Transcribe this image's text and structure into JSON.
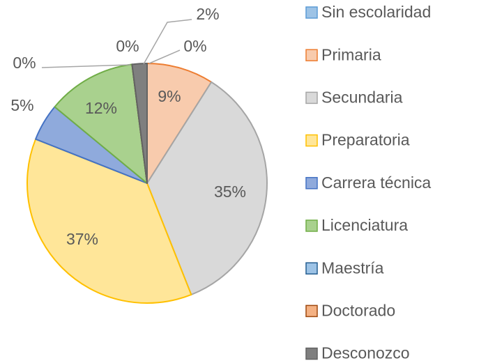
{
  "chart_data": {
    "type": "pie",
    "categories": [
      "Sin escolaridad",
      "Primaria",
      "Secundaria",
      "Preparatoria",
      "Carrera técnica",
      "Licenciatura",
      "Maestría",
      "Doctorado",
      "Desconozco"
    ],
    "values": [
      0,
      9,
      35,
      37,
      5,
      12,
      0,
      0,
      2
    ],
    "value_labels": [
      "0%",
      "9%",
      "35%",
      "37%",
      "5%",
      "12%",
      "0%",
      "0%",
      "2%"
    ],
    "colors": [
      "#9dc3e6",
      "#f8cbad",
      "#d9d9d9",
      "#ffe699",
      "#8faadc",
      "#a9d18e",
      "#9dc3e6",
      "#f4b183",
      "#7f7f7f"
    ],
    "edge_colors": [
      "#5b9bd5",
      "#ed7d31",
      "#a5a5a5",
      "#ffc000",
      "#4472c4",
      "#70ad47",
      "#255e91",
      "#9e480e",
      "#636363"
    ],
    "legend": "right"
  }
}
